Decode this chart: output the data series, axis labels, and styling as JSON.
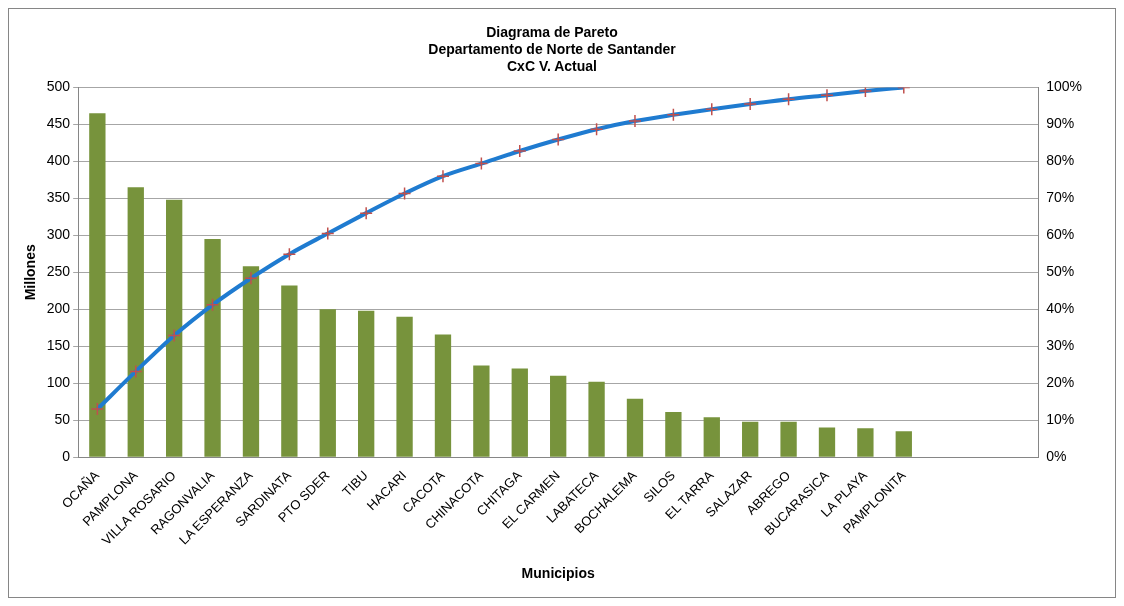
{
  "chart_data": {
    "type": "bar",
    "title": "Diagrama de Pareto\nDepartamento de Norte de Santander\nCxC V. Actual",
    "xlabel": "Municipios",
    "ylabel": "Millones",
    "categories": [
      "OCAÑA",
      "PAMPLONA",
      "VILLA ROSARIO",
      "RAGONVALIA",
      "LA ESPERANZA",
      "SARDINATA",
      "PTO SDER",
      "TIBU",
      "HACARI",
      "CACOTA",
      "CHINACOTA",
      "CHITAGA",
      "EL CARMEN",
      "LABATECA",
      "BOCHALEMA",
      "SILOS",
      "EL TARRA",
      "SALAZAR",
      "ABREGO",
      "BUCARASICA",
      "LA PLAYA",
      "PAMPLONITA",
      null,
      null,
      null
    ],
    "series": [
      {
        "color": "#77933c",
        "values": [
          465,
          365,
          348,
          295,
          258,
          232,
          200,
          198,
          190,
          166,
          124,
          120,
          110,
          102,
          79,
          61,
          54,
          48,
          48,
          40,
          39,
          35,
          null,
          null,
          null
        ]
      },
      {
        "type": "line",
        "axis": "y2",
        "color": "#1f7bd0",
        "marker": "cross",
        "values": [
          13,
          23.2,
          32.9,
          41.2,
          48.4,
          54.9,
          60.5,
          66,
          71.3,
          76,
          79.4,
          82.8,
          85.9,
          88.7,
          90.9,
          92.6,
          94.1,
          95.5,
          96.8,
          97.9,
          99,
          100,
          null,
          null,
          null
        ]
      }
    ],
    "ylim": [
      0,
      500
    ],
    "yticks": [
      0,
      50,
      100,
      150,
      200,
      250,
      300,
      350,
      400,
      450,
      500
    ],
    "y2lim": [
      0,
      100
    ],
    "y2ticks": [
      {
        "value": 0,
        "label": "0%"
      },
      {
        "value": 10,
        "label": "10%"
      },
      {
        "value": 20,
        "label": "20%"
      },
      {
        "value": 30,
        "label": "30%"
      },
      {
        "value": 40,
        "label": "40%"
      },
      {
        "value": 50,
        "label": "50%"
      },
      {
        "value": 60,
        "label": "60%"
      },
      {
        "value": 70,
        "label": "70%"
      },
      {
        "value": 80,
        "label": "80%"
      },
      {
        "value": 90,
        "label": "90%"
      },
      {
        "value": 100,
        "label": "100%"
      }
    ],
    "grid": "y",
    "legend": false
  }
}
